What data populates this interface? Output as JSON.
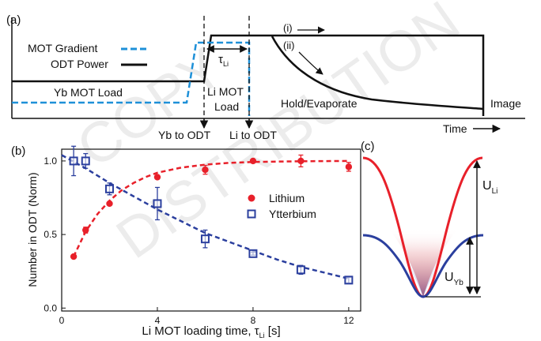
{
  "watermark": {
    "line1": "COPY",
    "line2": "DISTRIBUTION"
  },
  "panel_a": {
    "label": "(a)",
    "legend": [
      "MOT Gradient",
      "ODT Power"
    ],
    "annotations": {
      "yb_load": "Yb MOT Load",
      "li_load_1": "Li MOT",
      "li_load_2": "Load",
      "hold": "Hold/Evaporate",
      "image": "Image",
      "tau": "τ",
      "tau_sub": "Li",
      "path_i": "(i)",
      "path_ii": "(ii)",
      "yb_to_odt": "Yb to ODT",
      "li_to_odt": "Li to ODT",
      "time": "Time"
    },
    "colors": {
      "gradient": "#1e90d8",
      "power": "#111111"
    }
  },
  "chart_data": {
    "type": "scatter",
    "title": "",
    "xlabel": "Li MOT loading time, τ",
    "xlabel_sub": "Li",
    "xlabel_unit": "[s]",
    "ylabel": "Number in ODT (Norm)",
    "xlim": [
      0,
      12.5
    ],
    "ylim": [
      -0.02,
      1.08
    ],
    "xticks": [
      0,
      4,
      8,
      12
    ],
    "yticks": [
      0.0,
      0.5,
      1.0
    ],
    "xtick_labels": [
      "0",
      "4",
      "8",
      "12"
    ],
    "ytick_labels": [
      "0.0",
      "0.5",
      "1.0"
    ],
    "legend_position": "center-right",
    "label": "(b)",
    "series": [
      {
        "name": "Lithium",
        "color": "#e8202a",
        "marker": "filled-circle",
        "x": [
          0.5,
          1.0,
          2.0,
          4.0,
          6.0,
          8.0,
          10.0,
          12.0
        ],
        "y": [
          0.35,
          0.53,
          0.71,
          0.89,
          0.94,
          1.0,
          1.0,
          0.96
        ],
        "err": [
          0.01,
          0.02,
          0.01,
          0.01,
          0.03,
          0.01,
          0.04,
          0.03
        ],
        "fit_x": [
          0.5,
          1.0,
          1.5,
          2.0,
          2.5,
          3.0,
          3.5,
          4.0,
          5.0,
          6.0,
          7.0,
          8.0,
          9.0,
          10.0,
          11.0,
          12.0
        ],
        "fit_y": [
          0.35,
          0.52,
          0.64,
          0.73,
          0.8,
          0.85,
          0.89,
          0.92,
          0.955,
          0.975,
          0.987,
          0.993,
          0.996,
          0.998,
          0.999,
          1.0
        ]
      },
      {
        "name": "Ytterbium",
        "color": "#2b3f9e",
        "marker": "open-square",
        "x": [
          0.5,
          1.0,
          2.0,
          4.0,
          6.0,
          8.0,
          10.0,
          12.0
        ],
        "y": [
          1.0,
          1.0,
          0.81,
          0.71,
          0.47,
          0.37,
          0.26,
          0.19
        ],
        "err": [
          0.1,
          0.05,
          0.04,
          0.11,
          0.06,
          0.01,
          0.03,
          0.02
        ],
        "fit_x": [
          0.0,
          1.0,
          2.0,
          3.0,
          4.0,
          5.0,
          6.0,
          7.0,
          8.0,
          9.0,
          10.0,
          11.0,
          12.0
        ],
        "fit_y": [
          1.04,
          0.95,
          0.85,
          0.76,
          0.67,
          0.59,
          0.51,
          0.45,
          0.39,
          0.33,
          0.28,
          0.24,
          0.2
        ]
      }
    ]
  },
  "panel_c": {
    "label": "(c)",
    "u_li": "U",
    "u_li_sub": "Li",
    "u_yb": "U",
    "u_yb_sub": "Yb",
    "colors": {
      "li": "#e8202a",
      "yb": "#2b3f9e"
    }
  }
}
